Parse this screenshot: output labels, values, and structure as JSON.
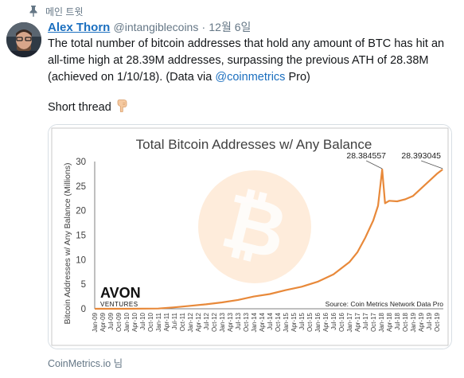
{
  "context": {
    "label": "메인 트윗",
    "icon": "pin-icon"
  },
  "tweet": {
    "author_name": "Alex Thorn",
    "handle": "@intangiblecoins",
    "separator": "·",
    "date": "12월 6일",
    "text_part1": "The total number of bitcoin addresses that hold any amount of BTC has hit an all-time high at 28.39M addresses, surpassing the previous ATH of 28.38M (achieved on 1/10/18). (Data via ",
    "mention": "@coinmetrics",
    "text_part2": " Pro)",
    "thread_label": "Short thread",
    "thread_emoji_icon": "pointing-down-hand-icon"
  },
  "media_credit": "CoinMetrics.io 님",
  "colors": {
    "accent": "#1b6fbf",
    "muted": "#657786",
    "line": "#e8893a",
    "watermark": "#f8a04a"
  },
  "chart_data": {
    "type": "line",
    "title": "Total Bitcoin Addresses w/ Any Balance",
    "ylabel": "Bitcoin Addresses w/ Any Balance (Millions)",
    "xlabel": "",
    "ylim": [
      0,
      30
    ],
    "yticks": [
      0,
      5,
      10,
      15,
      20,
      25,
      30
    ],
    "grid": false,
    "x_ticks": [
      "Jan-09",
      "Apr-09",
      "Jul-09",
      "Oct-09",
      "Jan-10",
      "Apr-10",
      "Jul-10",
      "Oct-10",
      "Jan-11",
      "Apr-11",
      "Jul-11",
      "Oct-11",
      "Jan-12",
      "Apr-12",
      "Jul-12",
      "Oct-12",
      "Jan-13",
      "Apr-13",
      "Jul-13",
      "Oct-13",
      "Jan-14",
      "Apr-14",
      "Jul-14",
      "Oct-14",
      "Jan-15",
      "Apr-15",
      "Jul-15",
      "Oct-15",
      "Jan-16",
      "Apr-16",
      "Jul-16",
      "Oct-16",
      "Jan-17",
      "Apr-17",
      "Jul-17",
      "Oct-17",
      "Jan-18",
      "Apr-18",
      "Jul-18",
      "Oct-18",
      "Jan-19",
      "Apr-19",
      "Jul-19",
      "Oct-19"
    ],
    "series": [
      {
        "x": [
          2009.0,
          2010.0,
          2011.0,
          2011.5,
          2012.0,
          2012.5,
          2013.0,
          2013.5,
          2014.0,
          2014.5,
          2015.0,
          2015.5,
          2016.0,
          2016.5,
          2017.0,
          2017.25,
          2017.5,
          2017.75,
          2017.9,
          2018.03,
          2018.12,
          2018.25,
          2018.5,
          2018.75,
          2019.0,
          2019.25,
          2019.5,
          2019.75,
          2019.93
        ],
        "y": [
          0,
          0,
          0.05,
          0.3,
          0.6,
          0.9,
          1.3,
          1.8,
          2.5,
          3.0,
          3.8,
          4.5,
          5.5,
          7.0,
          9.5,
          11.5,
          14.5,
          18.0,
          21.0,
          28.384557,
          21.5,
          22.0,
          21.9,
          22.3,
          23.0,
          24.5,
          26.0,
          27.5,
          28.393045
        ]
      }
    ],
    "annotations": [
      {
        "label": "28.384557",
        "x": 2018.03,
        "y": 28.384557
      },
      {
        "label": "28.393045",
        "x": 2019.93,
        "y": 28.393045
      }
    ],
    "watermark": "bitcoin-logo",
    "logo": {
      "main": "AVON",
      "sub": "VENTURES"
    },
    "source": "Source: Coin Metrics Network Data Pro"
  }
}
